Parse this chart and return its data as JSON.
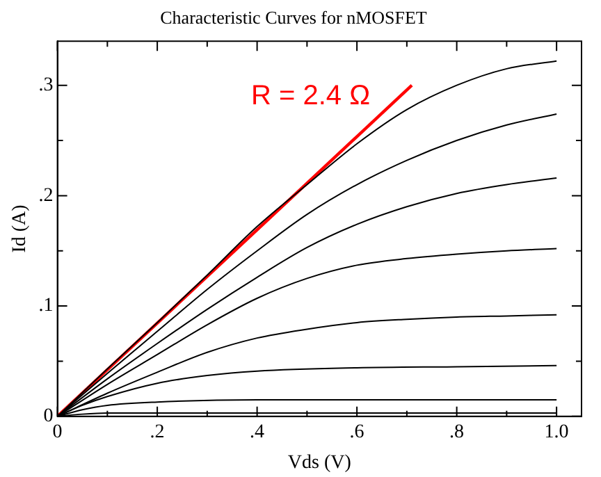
{
  "chart_data": {
    "type": "line",
    "title": "Characteristic Curves for nMOSFET",
    "xlabel": "Vds (V)",
    "ylabel": "Id (A)",
    "xlim": [
      0,
      1.05
    ],
    "ylim": [
      0,
      0.34
    ],
    "xticks": [
      0,
      {
        "value": 0.1,
        "label": null
      },
      {
        "value": 0.2,
        "label": ".2"
      },
      {
        "value": 0.3,
        "label": null
      },
      {
        "value": 0.4,
        "label": ".4"
      },
      {
        "value": 0.5,
        "label": null
      },
      {
        "value": 0.6,
        "label": ".6"
      },
      {
        "value": 0.7,
        "label": null
      },
      {
        "value": 0.8,
        "label": ".8"
      },
      {
        "value": 0.9,
        "label": null
      },
      {
        "value": 1,
        "label": "1.0"
      }
    ],
    "yticks": [
      0,
      {
        "value": 0.05,
        "label": null
      },
      {
        "value": 0.1,
        "label": ".1"
      },
      {
        "value": 0.15,
        "label": null
      },
      {
        "value": 0.2,
        "label": ".2"
      },
      {
        "value": 0.25,
        "label": null
      },
      {
        "value": 0.3,
        "label": ".3"
      }
    ],
    "grid": false,
    "legend": false,
    "marker": "none",
    "line_style": "solid",
    "series": [
      {
        "color": "#000000",
        "x": [
          0,
          0.1,
          0.2,
          0.3,
          0.4,
          0.5,
          0.6,
          0.7,
          0.8,
          0.9,
          1.0
        ],
        "values": [
          0,
          0.043,
          0.085,
          0.128,
          0.172,
          0.21,
          0.247,
          0.278,
          0.3,
          0.315,
          0.322
        ]
      },
      {
        "color": "#000000",
        "x": [
          0,
          0.1,
          0.2,
          0.3,
          0.4,
          0.5,
          0.6,
          0.7,
          0.8,
          0.9,
          1.0
        ],
        "values": [
          0,
          0.039,
          0.077,
          0.115,
          0.15,
          0.183,
          0.21,
          0.232,
          0.25,
          0.264,
          0.274
        ]
      },
      {
        "color": "#000000",
        "x": [
          0,
          0.1,
          0.2,
          0.3,
          0.4,
          0.5,
          0.6,
          0.7,
          0.8,
          0.9,
          1.0
        ],
        "values": [
          0,
          0.034,
          0.066,
          0.097,
          0.126,
          0.153,
          0.174,
          0.19,
          0.202,
          0.21,
          0.216
        ]
      },
      {
        "color": "#000000",
        "x": [
          0,
          0.1,
          0.2,
          0.3,
          0.4,
          0.5,
          0.6,
          0.7,
          0.8,
          0.9,
          1.0
        ],
        "values": [
          0,
          0.029,
          0.056,
          0.083,
          0.107,
          0.125,
          0.137,
          0.143,
          0.147,
          0.15,
          0.152
        ]
      },
      {
        "color": "#000000",
        "x": [
          0,
          0.1,
          0.2,
          0.3,
          0.4,
          0.5,
          0.6,
          0.7,
          0.8,
          0.9,
          1.0
        ],
        "values": [
          0,
          0.021,
          0.04,
          0.058,
          0.071,
          0.079,
          0.085,
          0.088,
          0.09,
          0.091,
          0.092
        ]
      },
      {
        "color": "#000000",
        "x": [
          0,
          0.05,
          0.1,
          0.2,
          0.3,
          0.4,
          0.6,
          0.8,
          1.0
        ],
        "values": [
          0,
          0.01,
          0.018,
          0.03,
          0.037,
          0.041,
          0.044,
          0.045,
          0.046
        ]
      },
      {
        "color": "#000000",
        "x": [
          0,
          0.05,
          0.1,
          0.2,
          0.4,
          1.0
        ],
        "values": [
          0,
          0.006,
          0.01,
          0.013,
          0.015,
          0.015
        ]
      },
      {
        "color": "#000000",
        "x": [
          0,
          0.05,
          0.1,
          1.0
        ],
        "values": [
          0,
          0.002,
          0.003,
          0.003
        ]
      },
      {
        "name": "R = 2.4 Ω",
        "color": "#ff0000",
        "x": [
          0,
          0.71
        ],
        "values": [
          0,
          0.3
        ]
      }
    ]
  }
}
